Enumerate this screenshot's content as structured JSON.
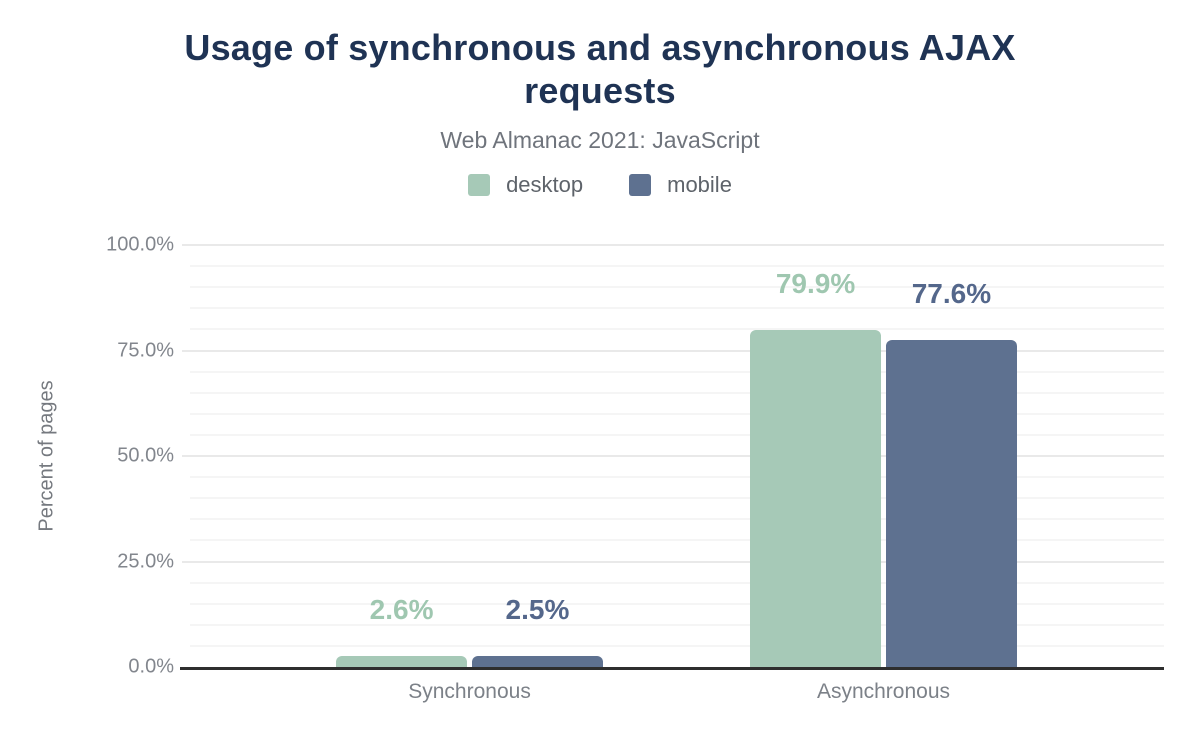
{
  "chart_data": {
    "type": "bar",
    "title": "Usage of synchronous and asynchronous AJAX requests",
    "subtitle": "Web Almanac 2021: JavaScript",
    "categories": [
      "Synchronous",
      "Asynchronous"
    ],
    "series": [
      {
        "name": "desktop",
        "color": "#a6c9b7",
        "label_color": "#9fc7b0",
        "values": [
          2.6,
          79.9
        ],
        "labels": [
          "2.6%",
          "79.9%"
        ]
      },
      {
        "name": "mobile",
        "color": "#5e7190",
        "label_color": "#54678b",
        "values": [
          2.5,
          77.6
        ],
        "labels": [
          "2.5%",
          "77.6%"
        ]
      }
    ],
    "xlabel": "",
    "ylabel": "Percent of pages",
    "ylim": [
      0,
      100
    ],
    "yticks": [
      "0.0%",
      "25.0%",
      "50.0%",
      "75.0%",
      "100.0%"
    ],
    "grid": "horizontal, minor every 5%, major every 25%",
    "legend_position": "top",
    "title_color": "#1f3354",
    "axis_line_color": "#2e2e2e"
  }
}
